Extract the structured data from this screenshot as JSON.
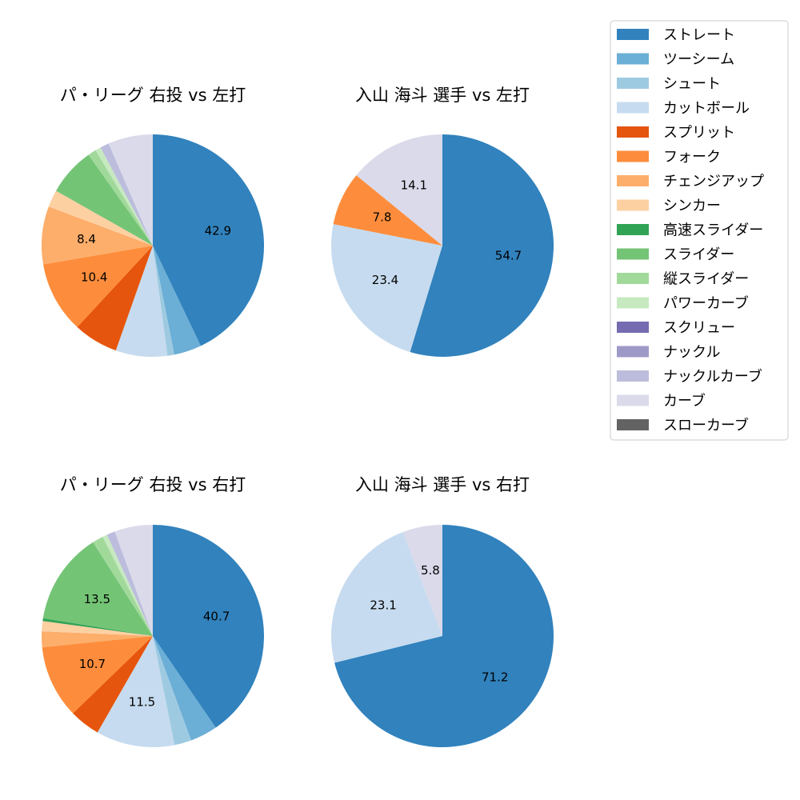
{
  "chart_data": [
    {
      "type": "pie",
      "title": "パ・リーグ 右投 vs 左打",
      "values": [
        42.9,
        4.0,
        1.0,
        7.5,
        6.5,
        10.4,
        8.4,
        2.5,
        0.0,
        7.0,
        1.2,
        0.8,
        0.0,
        0.0,
        1.3,
        6.5,
        0.0
      ],
      "labels": [
        "42.9",
        "",
        "",
        "",
        "",
        "10.4",
        "8.4",
        "",
        "",
        "",
        "",
        "",
        "",
        "",
        "",
        "",
        ""
      ]
    },
    {
      "type": "pie",
      "title": "入山 海斗 選手 vs 左打",
      "values": [
        54.7,
        0,
        0,
        23.4,
        0,
        7.8,
        0,
        0,
        0,
        0,
        0,
        0,
        0,
        0,
        0,
        14.1,
        0
      ],
      "labels": [
        "54.7",
        "",
        "",
        "23.4",
        "",
        "7.8",
        "",
        "",
        "",
        "",
        "",
        "",
        "",
        "",
        "",
        "14.1",
        ""
      ]
    },
    {
      "type": "pie",
      "title": "パ・リーグ 右投 vs 右打",
      "values": [
        40.7,
        4.0,
        2.5,
        11.5,
        4.5,
        10.7,
        2.3,
        1.5,
        0.4,
        13.5,
        1.6,
        0.7,
        0.0,
        0.0,
        1.2,
        5.6,
        0.0
      ],
      "labels": [
        "40.7",
        "",
        "",
        "11.5",
        "",
        "10.7",
        "",
        "",
        "",
        "13.5",
        "",
        "",
        "",
        "",
        "",
        "",
        ""
      ]
    },
    {
      "type": "pie",
      "title": "入山 海斗 選手 vs 右打",
      "values": [
        71.2,
        0,
        0,
        23.1,
        0,
        0,
        0,
        0,
        0,
        0,
        0,
        0,
        0,
        0,
        0,
        5.8,
        0
      ],
      "labels": [
        "71.2",
        "",
        "",
        "23.1",
        "",
        "",
        "",
        "",
        "",
        "",
        "",
        "",
        "",
        "",
        "",
        "5.8",
        ""
      ]
    }
  ],
  "legend": {
    "entries": [
      "ストレート",
      "ツーシーム",
      "シュート",
      "カットボール",
      "スプリット",
      "フォーク",
      "チェンジアップ",
      "シンカー",
      "高速スライダー",
      "スライダー",
      "縦スライダー",
      "パワーカーブ",
      "スクリュー",
      "ナックル",
      "ナックルカーブ",
      "カーブ",
      "スローカーブ"
    ],
    "colors": [
      "#3182bd",
      "#6baed6",
      "#9ecae1",
      "#c6dbef",
      "#e6550d",
      "#fd8d3c",
      "#fdae6b",
      "#fdd0a2",
      "#31a354",
      "#74c476",
      "#a1d99b",
      "#c7e9c0",
      "#756bb1",
      "#9e9ac8",
      "#bcbddc",
      "#dadaeb",
      "#636363"
    ]
  }
}
